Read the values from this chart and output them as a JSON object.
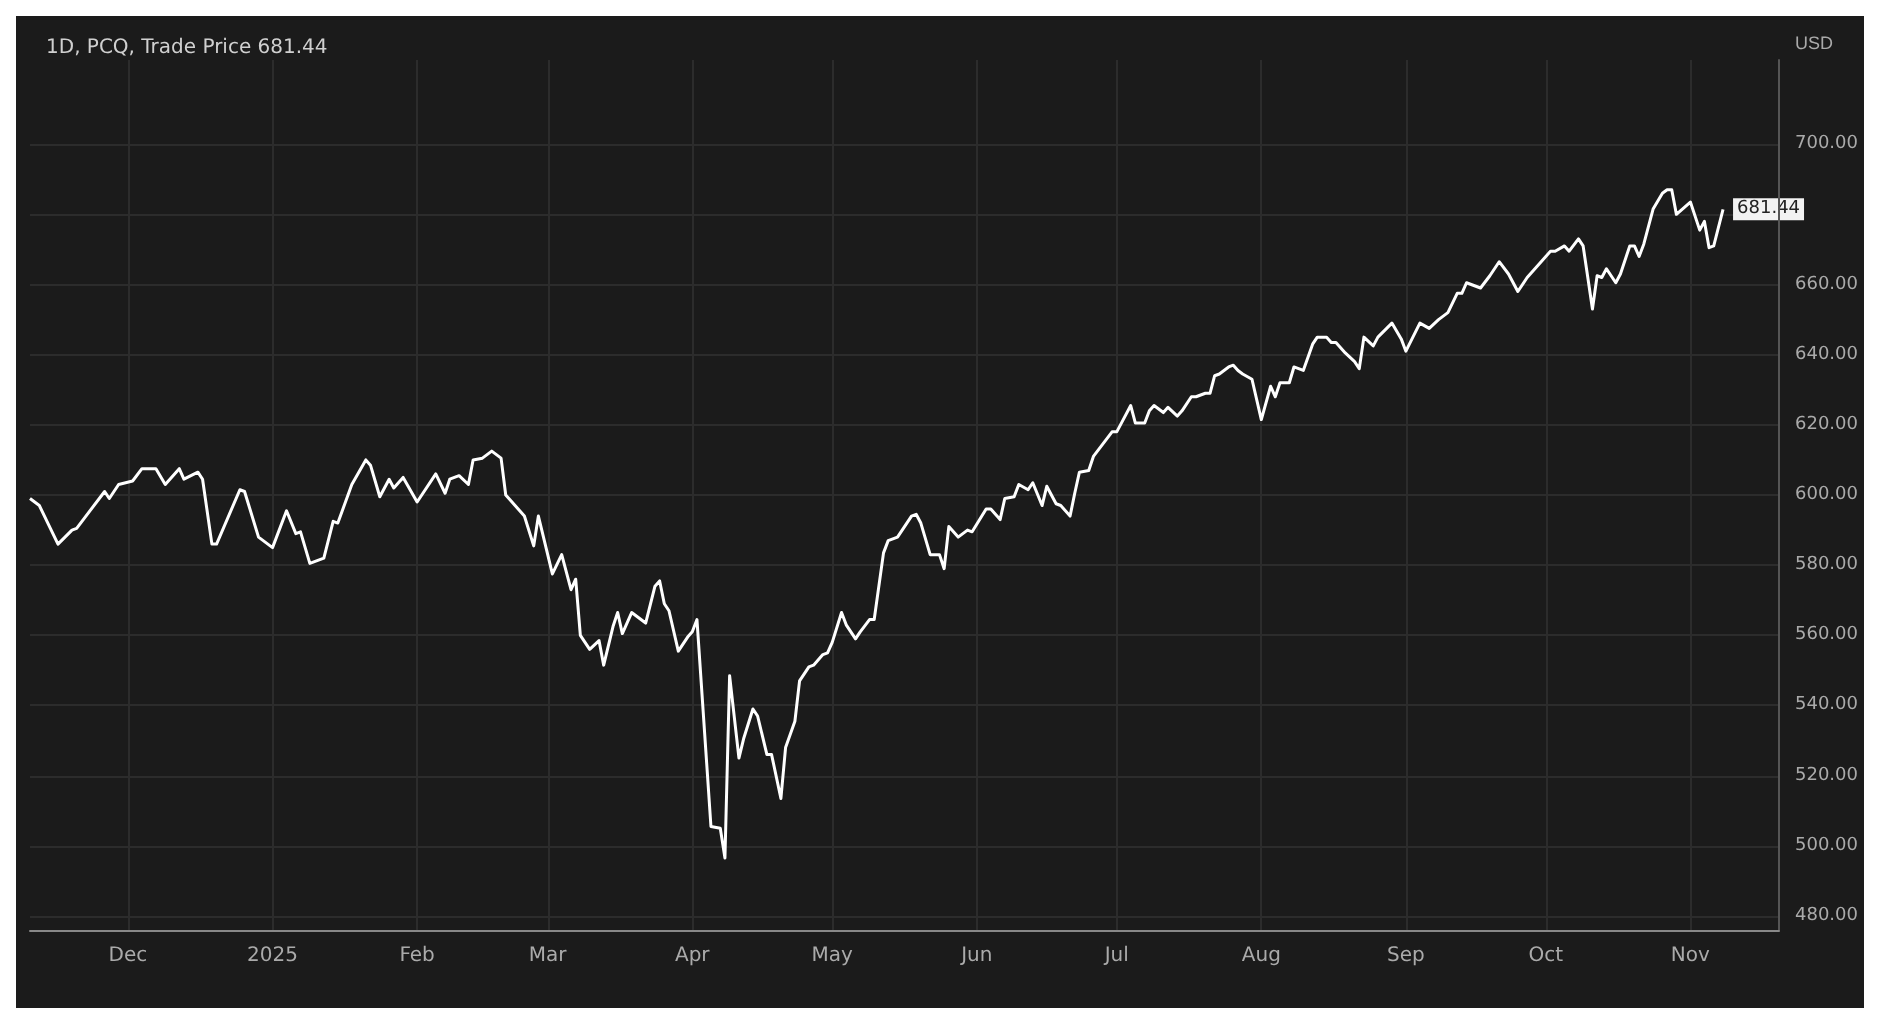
{
  "chart_data": {
    "type": "line",
    "title": "1D, PCQ, Trade Price 681.44",
    "ylabel": "USD",
    "x": [
      "2024-11-10",
      "2024-11-12",
      "2024-11-16",
      "2024-11-19",
      "2024-11-20",
      "2024-11-26",
      "2024-11-27",
      "2024-11-29",
      "2024-12-02",
      "2024-12-04",
      "2024-12-07",
      "2024-12-09",
      "2024-12-12",
      "2024-12-13",
      "2024-12-16",
      "2024-12-17",
      "2024-12-19",
      "2024-12-20",
      "2024-12-25",
      "2024-12-26",
      "2024-12-29",
      "2025-01-01",
      "2025-01-04",
      "2025-01-06",
      "2025-01-07",
      "2025-01-09",
      "2025-01-12",
      "2025-01-14",
      "2025-01-15",
      "2025-01-18",
      "2025-01-21",
      "2025-01-22",
      "2025-01-24",
      "2025-01-26",
      "2025-01-27",
      "2025-01-29",
      "2025-02-01",
      "2025-02-05",
      "2025-02-07",
      "2025-02-08",
      "2025-02-10",
      "2025-02-12",
      "2025-02-13",
      "2025-02-15",
      "2025-02-17",
      "2025-02-19",
      "2025-02-20",
      "2025-02-23",
      "2025-02-24",
      "2025-02-26",
      "2025-02-27",
      "2025-03-02",
      "2025-03-04",
      "2025-03-06",
      "2025-03-07",
      "2025-03-08",
      "2025-03-10",
      "2025-03-12",
      "2025-03-13",
      "2025-03-15",
      "2025-03-16",
      "2025-03-17",
      "2025-03-19",
      "2025-03-22",
      "2025-03-24",
      "2025-03-25",
      "2025-03-26",
      "2025-03-27",
      "2025-03-29",
      "2025-03-31",
      "2025-04-01",
      "2025-04-02",
      "2025-04-05",
      "2025-04-07",
      "2025-04-08",
      "2025-04-09",
      "2025-04-11",
      "2025-04-12",
      "2025-04-14",
      "2025-04-15",
      "2025-04-17",
      "2025-04-18",
      "2025-04-20",
      "2025-04-21",
      "2025-04-23",
      "2025-04-24",
      "2025-04-26",
      "2025-04-27",
      "2025-04-29",
      "2025-04-30",
      "2025-05-01",
      "2025-05-03",
      "2025-05-04",
      "2025-05-06",
      "2025-05-07",
      "2025-05-09",
      "2025-05-10",
      "2025-05-12",
      "2025-05-13",
      "2025-05-15",
      "2025-05-18",
      "2025-05-19",
      "2025-05-20",
      "2025-05-22",
      "2025-05-24",
      "2025-05-25",
      "2025-05-26",
      "2025-05-28",
      "2025-05-30",
      "2025-05-31",
      "2025-06-03",
      "2025-06-04",
      "2025-06-06",
      "2025-06-07",
      "2025-06-09",
      "2025-06-10",
      "2025-06-12",
      "2025-06-13",
      "2025-06-15",
      "2025-06-16",
      "2025-06-18",
      "2025-06-19",
      "2025-06-21",
      "2025-06-22",
      "2025-06-23",
      "2025-06-25",
      "2025-06-26",
      "2025-06-28",
      "2025-06-30",
      "2025-07-01",
      "2025-07-02",
      "2025-07-04",
      "2025-07-05",
      "2025-07-07",
      "2025-07-08",
      "2025-07-09",
      "2025-07-11",
      "2025-07-12",
      "2025-07-14",
      "2025-07-15",
      "2025-07-17",
      "2025-07-18",
      "2025-07-20",
      "2025-07-21",
      "2025-07-22",
      "2025-07-23",
      "2025-07-25",
      "2025-07-26",
      "2025-07-27",
      "2025-07-28",
      "2025-07-30",
      "2025-08-01",
      "2025-08-03",
      "2025-08-04",
      "2025-08-05",
      "2025-08-07",
      "2025-08-08",
      "2025-08-10",
      "2025-08-12",
      "2025-08-13",
      "2025-08-15",
      "2025-08-16",
      "2025-08-17",
      "2025-08-19",
      "2025-08-21",
      "2025-08-22",
      "2025-08-23",
      "2025-08-25",
      "2025-08-26",
      "2025-08-29",
      "2025-08-31",
      "2025-09-01",
      "2025-09-04",
      "2025-09-06",
      "2025-09-08",
      "2025-09-10",
      "2025-09-12",
      "2025-09-13",
      "2025-09-14",
      "2025-09-16",
      "2025-09-17",
      "2025-09-19",
      "2025-09-21",
      "2025-09-23",
      "2025-09-25",
      "2025-09-27",
      "2025-09-29",
      "2025-10-01",
      "2025-10-02",
      "2025-10-03",
      "2025-10-05",
      "2025-10-06",
      "2025-10-08",
      "2025-10-09",
      "2025-10-11",
      "2025-10-12",
      "2025-10-13",
      "2025-10-14",
      "2025-10-16",
      "2025-10-17",
      "2025-10-19",
      "2025-10-20",
      "2025-10-21",
      "2025-10-22",
      "2025-10-24",
      "2025-10-26",
      "2025-10-27",
      "2025-10-28",
      "2025-10-29",
      "2025-11-01",
      "2025-11-03",
      "2025-11-04",
      "2025-11-05",
      "2025-11-06",
      "2025-11-08"
    ],
    "series": [
      {
        "color": "#ffffff",
        "values": [
          599,
          597,
          586,
          590,
          590.5,
          601,
          599,
          603,
          604,
          607.5,
          607.5,
          603,
          607.5,
          604.5,
          606.5,
          604.5,
          586,
          586,
          601.5,
          601,
          588,
          585,
          595.5,
          589,
          589.5,
          580.5,
          582,
          592.5,
          592,
          603,
          610,
          608.5,
          599.5,
          604.5,
          602,
          605,
          598,
          606,
          600.5,
          604.5,
          605.5,
          603,
          610,
          610.5,
          612.5,
          610.5,
          600,
          595.5,
          594,
          585.5,
          594,
          577.5,
          583,
          573,
          576,
          560,
          556,
          558.5,
          551.5,
          562.5,
          566.5,
          560.5,
          566.5,
          563.5,
          574,
          575.5,
          569,
          567,
          555.5,
          559.5,
          561,
          564.5,
          505.5,
          505,
          496.5,
          548.5,
          525,
          530.5,
          539,
          537,
          526,
          526,
          513.5,
          528,
          535.5,
          547,
          551,
          551.5,
          554.5,
          555,
          558,
          566.5,
          563,
          559,
          561,
          564.5,
          564.5,
          583.5,
          587,
          588,
          594,
          594.5,
          592,
          583,
          583,
          579,
          591,
          588,
          590,
          589.5,
          596,
          596,
          593,
          599,
          599.5,
          603,
          601.5,
          603.5,
          597,
          602.5,
          597.5,
          597,
          594,
          600.5,
          606.5,
          607,
          611,
          614.5,
          618,
          618,
          620.5,
          625.5,
          620.5,
          620.5,
          624,
          625.5,
          623.5,
          625,
          622.5,
          624,
          628,
          628,
          629,
          629,
          634,
          634.5,
          636.5,
          637,
          635.5,
          634.5,
          633,
          621.5,
          631,
          628,
          632,
          632,
          636.5,
          635.5,
          643,
          645,
          645,
          643.5,
          643.5,
          640.5,
          638,
          636,
          645,
          642.5,
          645,
          649,
          644.5,
          641,
          649,
          647.5,
          650,
          652,
          657.5,
          657.5,
          660.5,
          659.5,
          659,
          662.5,
          666.5,
          663,
          658,
          662,
          665,
          668,
          669.5,
          669.5,
          671,
          669.5,
          673,
          671,
          653,
          662.5,
          662,
          664.5,
          660.5,
          663,
          671,
          671,
          668,
          671.5,
          681.5,
          686,
          687,
          687,
          680,
          683.5,
          675.5,
          678,
          670.5,
          671,
          681.44
        ]
      }
    ],
    "xlim": [
      "2024-11-10",
      "2025-11-20"
    ],
    "xticks": [
      {
        "value": "2024-12-01",
        "label": "Dec"
      },
      {
        "value": "2025-01-01",
        "label": "2025"
      },
      {
        "value": "2025-02-01",
        "label": "Feb"
      },
      {
        "value": "2025-03-01",
        "label": "Mar"
      },
      {
        "value": "2025-04-01",
        "label": "Apr"
      },
      {
        "value": "2025-05-01",
        "label": "May"
      },
      {
        "value": "2025-06-01",
        "label": "Jun"
      },
      {
        "value": "2025-07-01",
        "label": "Jul"
      },
      {
        "value": "2025-08-01",
        "label": "Aug"
      },
      {
        "value": "2025-09-01",
        "label": "Sep"
      },
      {
        "value": "2025-10-01",
        "label": "Oct"
      },
      {
        "value": "2025-11-01",
        "label": "Nov"
      }
    ],
    "ylim": [
      476,
      724
    ],
    "yticks": [
      {
        "value": 480,
        "label": "480.00"
      },
      {
        "value": 500,
        "label": "500.00"
      },
      {
        "value": 520,
        "label": "520.00"
      },
      {
        "value": 540,
        "label": "540.00"
      },
      {
        "value": 560,
        "label": "560.00"
      },
      {
        "value": 580,
        "label": "580.00"
      },
      {
        "value": 600,
        "label": "600.00"
      },
      {
        "value": 620,
        "label": "620.00"
      },
      {
        "value": 640,
        "label": "640.00"
      },
      {
        "value": 660,
        "label": "660.00"
      },
      {
        "value": 680,
        "label": null
      },
      {
        "value": 700,
        "label": "700.00"
      }
    ],
    "annotations": [
      {
        "text": "681.44",
        "x": "2025-11-08",
        "y": 681.44
      }
    ],
    "grid": true,
    "marker": "none"
  }
}
